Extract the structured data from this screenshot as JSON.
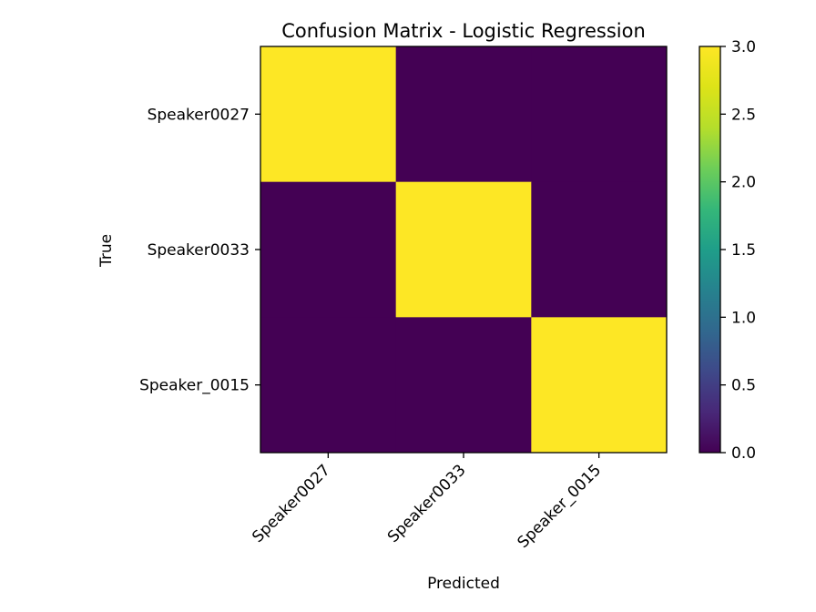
{
  "chart_data": {
    "type": "heatmap",
    "title": "Confusion Matrix - Logistic Regression",
    "xlabel": "Predicted",
    "ylabel": "True",
    "x_categories": [
      "Speaker0027",
      "Speaker0033",
      "Speaker_0015"
    ],
    "y_categories": [
      "Speaker0027",
      "Speaker0033",
      "Speaker_0015"
    ],
    "values": [
      [
        3,
        0,
        0
      ],
      [
        0,
        3,
        0
      ],
      [
        0,
        0,
        3
      ]
    ],
    "colormap": "viridis",
    "low_color": "#440154",
    "high_color": "#fde725",
    "colorbar": {
      "range": [
        0,
        3
      ],
      "ticks": [
        0.0,
        0.5,
        1.0,
        1.5,
        2.0,
        2.5,
        3.0
      ],
      "tick_labels": [
        "0.0",
        "0.5",
        "1.0",
        "1.5",
        "2.0",
        "2.5",
        "3.0"
      ]
    },
    "grid": false,
    "legend": "colorbar-right"
  }
}
